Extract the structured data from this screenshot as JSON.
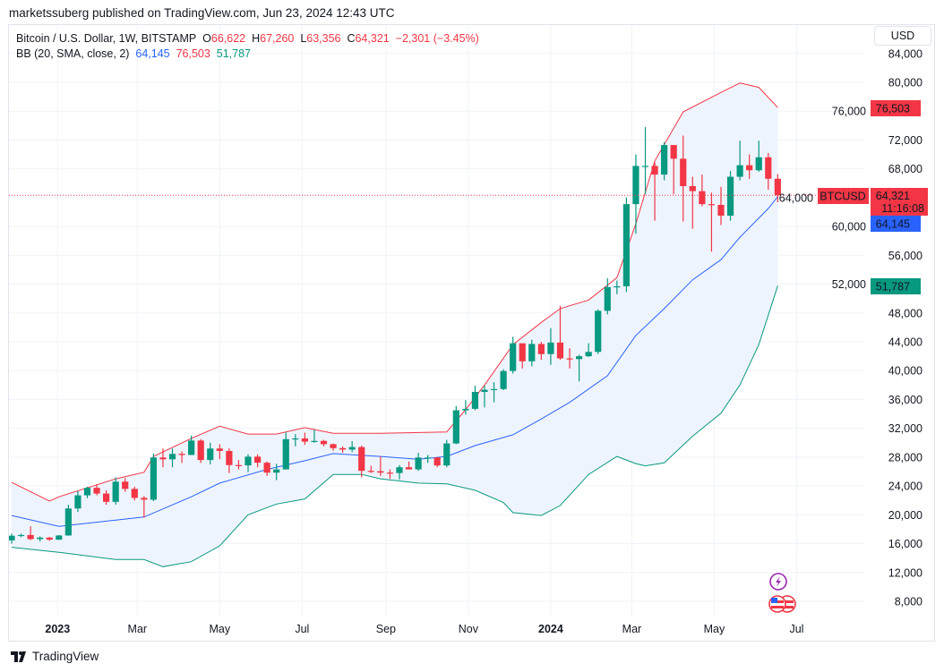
{
  "header": {
    "published": "marketssuberg published on TradingView.com, Jun 23, 2024 12:43 UTC"
  },
  "legend": {
    "symbol": "Bitcoin / U.S. Dollar, 1W, BITSTAMP",
    "o_label": "O",
    "o": "66,622",
    "h_label": "H",
    "h": "67,260",
    "l_label": "L",
    "l": "63,356",
    "c_label": "C",
    "c": "64,321",
    "change": "−2,301 (−3.45%)",
    "bb_label": "BB (20, SMA, close, 2)",
    "bb_basis": "64,145",
    "bb_upper": "76,503",
    "bb_lower": "51,787"
  },
  "currency_button": "USD",
  "price_tags": {
    "symbol": "BTCUSD",
    "last": "64,321",
    "countdown": "11:16:08",
    "basis": "64,145",
    "upper": "76,503",
    "lower": "51,787"
  },
  "footer": {
    "logo_text": "TradingView"
  },
  "colors": {
    "up": "#089981",
    "down": "#f23645",
    "basis": "#2962ff",
    "upper": "#f23645",
    "lower": "#089981",
    "band_fill": "#eef4fd"
  },
  "icons": [
    "lightning-event-icon",
    "us-flag-event-icon"
  ],
  "chart_data": {
    "type": "candlestick",
    "interval": "1W",
    "y_ticks": [
      8000,
      12000,
      16000,
      20000,
      24000,
      28000,
      32000,
      36000,
      40000,
      44000,
      48000,
      52000,
      56000,
      60000,
      64000,
      68000,
      72000,
      76000,
      80000,
      84000
    ],
    "y_tick_labels": [
      "8,000",
      "12,000",
      "16,000",
      "20,000",
      "24,000",
      "28,000",
      "32,000",
      "36,000",
      "40,000",
      "44,000",
      "48,000",
      "52,000",
      "56,000",
      "60,000",
      "64,000",
      "68,000",
      "72,000",
      "76,000",
      "80,000",
      "84,000"
    ],
    "x_ticks": [
      {
        "label": "2023",
        "date": "2023-01-01",
        "bold": true
      },
      {
        "label": "Mar",
        "date": "2023-03-01"
      },
      {
        "label": "May",
        "date": "2023-05-01"
      },
      {
        "label": "Jul",
        "date": "2023-07-01"
      },
      {
        "label": "Sep",
        "date": "2023-09-01"
      },
      {
        "label": "Nov",
        "date": "2023-11-01"
      },
      {
        "label": "2024",
        "date": "2024-01-01",
        "bold": true
      },
      {
        "label": "Mar",
        "date": "2024-03-01"
      },
      {
        "label": "May",
        "date": "2024-05-01"
      },
      {
        "label": "Jul",
        "date": "2024-07-01"
      }
    ],
    "grid": true,
    "candles": [
      [
        "2022-11-28",
        16450,
        17400,
        16000,
        17100
      ],
      [
        "2022-12-05",
        17100,
        17400,
        16900,
        17200
      ],
      [
        "2022-12-12",
        17200,
        18400,
        16500,
        16630
      ],
      [
        "2022-12-19",
        16630,
        17000,
        16300,
        16840
      ],
      [
        "2022-12-26",
        16840,
        16950,
        16400,
        16550
      ],
      [
        "2023-01-02",
        16550,
        17200,
        16500,
        17130
      ],
      [
        "2023-01-09",
        17130,
        21400,
        17100,
        20880
      ],
      [
        "2023-01-16",
        20880,
        23300,
        20400,
        22700
      ],
      [
        "2023-01-23",
        22700,
        23900,
        22300,
        23750
      ],
      [
        "2023-01-30",
        23750,
        24250,
        22700,
        22950
      ],
      [
        "2023-02-06",
        22950,
        23400,
        21400,
        21800
      ],
      [
        "2023-02-13",
        21800,
        25200,
        21400,
        24600
      ],
      [
        "2023-02-20",
        24600,
        25100,
        23200,
        23600
      ],
      [
        "2023-02-27",
        23600,
        23900,
        22000,
        22350
      ],
      [
        "2023-03-06",
        22350,
        22600,
        19600,
        22100
      ],
      [
        "2023-03-13",
        22100,
        28500,
        21900,
        27950
      ],
      [
        "2023-03-20",
        27950,
        29200,
        26600,
        27700
      ],
      [
        "2023-03-27",
        27700,
        29200,
        26600,
        28450
      ],
      [
        "2023-04-03",
        28450,
        28800,
        27200,
        28300
      ],
      [
        "2023-04-10",
        28300,
        31000,
        28300,
        30300
      ],
      [
        "2023-04-17",
        30300,
        30500,
        27200,
        27600
      ],
      [
        "2023-04-24",
        27600,
        30000,
        27000,
        29200
      ],
      [
        "2023-05-01",
        29200,
        29800,
        27700,
        28860
      ],
      [
        "2023-05-08",
        28860,
        29200,
        25800,
        26900
      ],
      [
        "2023-05-15",
        26900,
        27600,
        26300,
        26850
      ],
      [
        "2023-05-22",
        26850,
        28400,
        25900,
        28070
      ],
      [
        "2023-05-29",
        28070,
        28400,
        26600,
        27230
      ],
      [
        "2023-06-05",
        27230,
        27400,
        25400,
        25850
      ],
      [
        "2023-06-12",
        25850,
        27100,
        24800,
        26300
      ],
      [
        "2023-06-19",
        26300,
        31400,
        26300,
        30500
      ],
      [
        "2023-06-26",
        30500,
        31200,
        29500,
        30600
      ],
      [
        "2023-07-03",
        30600,
        31400,
        29700,
        30150
      ],
      [
        "2023-07-10",
        30150,
        31800,
        30000,
        30250
      ],
      [
        "2023-07-17",
        30250,
        30400,
        29500,
        29800
      ],
      [
        "2023-07-24",
        29800,
        29900,
        28900,
        29250
      ],
      [
        "2023-07-31",
        29250,
        29500,
        28600,
        29050
      ],
      [
        "2023-08-07",
        29050,
        30200,
        28700,
        29400
      ],
      [
        "2023-08-14",
        29400,
        29600,
        25200,
        26100
      ],
      [
        "2023-08-21",
        26100,
        26800,
        25800,
        26050
      ],
      [
        "2023-08-28",
        26050,
        28100,
        25400,
        25850
      ],
      [
        "2023-09-04",
        25850,
        26300,
        25000,
        25800
      ],
      [
        "2023-09-11",
        25800,
        26900,
        24900,
        26600
      ],
      [
        "2023-09-18",
        26600,
        27400,
        26300,
        26300
      ],
      [
        "2023-09-25",
        26300,
        28600,
        26100,
        27950
      ],
      [
        "2023-10-02",
        27950,
        28300,
        27200,
        27950
      ],
      [
        "2023-10-09",
        27950,
        28000,
        26600,
        26850
      ],
      [
        "2023-10-16",
        26850,
        30400,
        26600,
        29900
      ],
      [
        "2023-10-23",
        29900,
        35100,
        29800,
        34500
      ],
      [
        "2023-10-30",
        34500,
        35900,
        33900,
        34700
      ],
      [
        "2023-11-06",
        34700,
        37900,
        34500,
        37050
      ],
      [
        "2023-11-13",
        37050,
        37900,
        34900,
        37350
      ],
      [
        "2023-11-20",
        37350,
        38400,
        35600,
        37450
      ],
      [
        "2023-11-27",
        37450,
        40200,
        37300,
        39950
      ],
      [
        "2023-12-04",
        39950,
        44700,
        39600,
        43800
      ],
      [
        "2023-12-11",
        43800,
        43400,
        40300,
        41300
      ],
      [
        "2023-12-18",
        41300,
        44300,
        40600,
        43700
      ],
      [
        "2023-12-25",
        43700,
        44000,
        41500,
        42300
      ],
      [
        "2024-01-01",
        42300,
        45900,
        40800,
        43900
      ],
      [
        "2024-01-08",
        43900,
        49000,
        41500,
        41700
      ],
      [
        "2024-01-15",
        41700,
        43100,
        40300,
        41600
      ],
      [
        "2024-01-22",
        41600,
        42200,
        38500,
        42000
      ],
      [
        "2024-01-29",
        42000,
        43800,
        41900,
        42600
      ],
      [
        "2024-02-05",
        42600,
        48500,
        42300,
        48300
      ],
      [
        "2024-02-12",
        48300,
        52800,
        47800,
        51600
      ],
      [
        "2024-02-19",
        51600,
        52500,
        50600,
        51700
      ],
      [
        "2024-02-26",
        51700,
        64000,
        50900,
        63100
      ],
      [
        "2024-03-04",
        63100,
        70000,
        59000,
        68400
      ],
      [
        "2024-03-11",
        68400,
        73800,
        64500,
        68400
      ],
      [
        "2024-03-18",
        68400,
        68900,
        60800,
        67200
      ],
      [
        "2024-03-25",
        67200,
        71700,
        66400,
        71300
      ],
      [
        "2024-04-01",
        71300,
        71300,
        64500,
        69400
      ],
      [
        "2024-04-08",
        69400,
        72600,
        60700,
        65600
      ],
      [
        "2024-04-15",
        65600,
        66900,
        59700,
        64900
      ],
      [
        "2024-04-22",
        64900,
        67200,
        62800,
        63100
      ],
      [
        "2024-04-29",
        63100,
        64700,
        56500,
        63000
      ],
      [
        "2024-05-06",
        63000,
        65500,
        60200,
        61500
      ],
      [
        "2024-05-13",
        61500,
        67700,
        60800,
        66900
      ],
      [
        "2024-05-20",
        66900,
        71900,
        66400,
        68500
      ],
      [
        "2024-05-27",
        68500,
        70000,
        66600,
        67800
      ],
      [
        "2024-06-03",
        67800,
        71900,
        67600,
        69600
      ],
      [
        "2024-06-10",
        69600,
        70200,
        65100,
        66622
      ],
      [
        "2024-06-17",
        66622,
        67260,
        63356,
        64321
      ]
    ],
    "bollinger": {
      "upper": [
        [
          "2022-11-28",
          24500
        ],
        [
          "2022-12-26",
          21900
        ],
        [
          "2023-01-02",
          22500
        ],
        [
          "2023-02-13",
          25000
        ],
        [
          "2023-03-06",
          25900
        ],
        [
          "2023-03-13",
          28100
        ],
        [
          "2023-04-10",
          30600
        ],
        [
          "2023-05-01",
          32300
        ],
        [
          "2023-05-22",
          31200
        ],
        [
          "2023-06-12",
          31200
        ],
        [
          "2023-07-03",
          32100
        ],
        [
          "2023-07-24",
          31300
        ],
        [
          "2023-08-28",
          31300
        ],
        [
          "2023-10-16",
          31500
        ],
        [
          "2023-10-30",
          34600
        ],
        [
          "2023-11-13",
          38000
        ],
        [
          "2023-12-04",
          43600
        ],
        [
          "2023-12-25",
          46700
        ],
        [
          "2024-01-08",
          48600
        ],
        [
          "2024-01-29",
          49800
        ],
        [
          "2024-02-19",
          52900
        ],
        [
          "2024-03-04",
          60400
        ],
        [
          "2024-03-18",
          69100
        ],
        [
          "2024-04-08",
          75900
        ],
        [
          "2024-05-06",
          78600
        ],
        [
          "2024-05-20",
          79900
        ],
        [
          "2024-06-03",
          79300
        ],
        [
          "2024-06-17",
          76503
        ]
      ],
      "basis": [
        [
          "2022-11-28",
          19900
        ],
        [
          "2023-01-02",
          18400
        ],
        [
          "2023-03-06",
          19700
        ],
        [
          "2023-04-10",
          22500
        ],
        [
          "2023-05-01",
          24400
        ],
        [
          "2023-06-05",
          26300
        ],
        [
          "2023-07-03",
          27500
        ],
        [
          "2023-07-24",
          28500
        ],
        [
          "2023-08-28",
          28100
        ],
        [
          "2023-09-25",
          27700
        ],
        [
          "2023-10-16",
          28100
        ],
        [
          "2023-11-06",
          29600
        ],
        [
          "2023-12-04",
          31100
        ],
        [
          "2023-12-25",
          33300
        ],
        [
          "2024-01-15",
          35600
        ],
        [
          "2024-02-12",
          39300
        ],
        [
          "2024-03-04",
          44900
        ],
        [
          "2024-03-25",
          48600
        ],
        [
          "2024-04-15",
          52600
        ],
        [
          "2024-05-06",
          55400
        ],
        [
          "2024-05-20",
          58500
        ],
        [
          "2024-06-10",
          62500
        ],
        [
          "2024-06-17",
          64145
        ]
      ],
      "lower": [
        [
          "2022-11-28",
          15500
        ],
        [
          "2023-01-02",
          14800
        ],
        [
          "2023-02-13",
          13800
        ],
        [
          "2023-03-06",
          13800
        ],
        [
          "2023-03-20",
          12800
        ],
        [
          "2023-04-10",
          13500
        ],
        [
          "2023-05-01",
          15700
        ],
        [
          "2023-05-22",
          20000
        ],
        [
          "2023-06-12",
          21500
        ],
        [
          "2023-07-03",
          22200
        ],
        [
          "2023-07-24",
          25600
        ],
        [
          "2023-08-14",
          25600
        ],
        [
          "2023-08-28",
          25000
        ],
        [
          "2023-09-25",
          24400
        ],
        [
          "2023-10-16",
          24300
        ],
        [
          "2023-11-06",
          23400
        ],
        [
          "2023-11-27",
          21700
        ],
        [
          "2023-12-04",
          20300
        ],
        [
          "2023-12-25",
          19900
        ],
        [
          "2024-01-08",
          21300
        ],
        [
          "2024-01-29",
          25600
        ],
        [
          "2024-02-19",
          28100
        ],
        [
          "2024-03-04",
          27100
        ],
        [
          "2024-03-11",
          26800
        ],
        [
          "2024-03-25",
          27200
        ],
        [
          "2024-04-15",
          30900
        ],
        [
          "2024-05-06",
          34100
        ],
        [
          "2024-05-20",
          38000
        ],
        [
          "2024-06-03",
          43600
        ],
        [
          "2024-06-17",
          51787
        ]
      ]
    },
    "last_price": 64321
  }
}
